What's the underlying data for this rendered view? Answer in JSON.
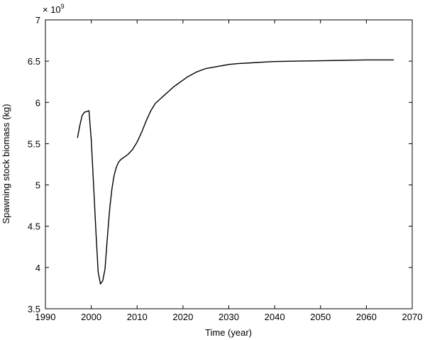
{
  "chart_data": {
    "type": "line",
    "title": "",
    "xlabel": "Time (year)",
    "ylabel": "Spawning stock biomass (kg)",
    "y_exponent_label": "× 10",
    "y_exponent_power": "9",
    "xlim": [
      1990,
      2070
    ],
    "ylim": [
      3.5,
      7
    ],
    "x_ticks": [
      1990,
      2000,
      2010,
      2020,
      2030,
      2040,
      2050,
      2060,
      2070
    ],
    "y_ticks": [
      3.5,
      4,
      4.5,
      5,
      5.5,
      6,
      6.5,
      7
    ],
    "x_tick_labels": [
      "1990",
      "2000",
      "2010",
      "2020",
      "2030",
      "2040",
      "2050",
      "2060",
      "2070"
    ],
    "y_tick_labels": [
      "3.5",
      "4",
      "4.5",
      "5",
      "5.5",
      "6",
      "6.5",
      "7"
    ],
    "grid": false,
    "series": [
      {
        "color": "#000000",
        "x": [
          1997,
          1997.5,
          1998,
          1998.5,
          1999,
          1999.5,
          2000,
          2000.5,
          2001,
          2001.5,
          2002,
          2002.5,
          2003,
          2003.5,
          2004,
          2004.5,
          2005,
          2005.5,
          2006,
          2006.5,
          2007,
          2007.5,
          2008,
          2008.5,
          2009,
          2010,
          2011,
          2012,
          2013,
          2014,
          2015,
          2016,
          2017,
          2018,
          2019,
          2020,
          2021,
          2022,
          2023,
          2024,
          2025,
          2026,
          2027,
          2028,
          2029,
          2030,
          2032,
          2035,
          2038,
          2040,
          2045,
          2050,
          2055,
          2060,
          2066
        ],
        "y": [
          5.57,
          5.72,
          5.84,
          5.88,
          5.89,
          5.9,
          5.55,
          5.0,
          4.45,
          3.95,
          3.8,
          3.84,
          3.98,
          4.35,
          4.7,
          4.95,
          5.12,
          5.22,
          5.28,
          5.31,
          5.33,
          5.35,
          5.37,
          5.4,
          5.43,
          5.52,
          5.64,
          5.78,
          5.9,
          5.99,
          6.04,
          6.09,
          6.14,
          6.19,
          6.23,
          6.27,
          6.31,
          6.34,
          6.37,
          6.39,
          6.41,
          6.42,
          6.43,
          6.44,
          6.45,
          6.46,
          6.47,
          6.48,
          6.49,
          6.495,
          6.5,
          6.505,
          6.51,
          6.515,
          6.515
        ]
      }
    ]
  }
}
